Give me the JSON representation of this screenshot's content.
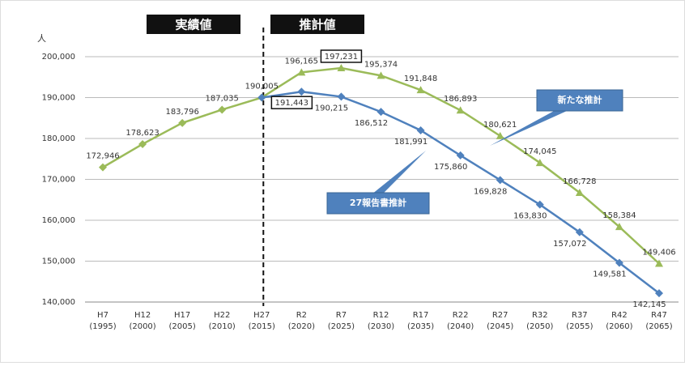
{
  "chart_data": {
    "type": "line",
    "headers": [
      "実績値",
      "推計値"
    ],
    "y_label": "人",
    "categories": [
      [
        "H7",
        "(1995)"
      ],
      [
        "H12",
        "(2000)"
      ],
      [
        "H17",
        "(2005)"
      ],
      [
        "H22",
        "(2010)"
      ],
      [
        "H27",
        "(2015)"
      ],
      [
        "R2",
        "(2020)"
      ],
      [
        "R7",
        "(2025)"
      ],
      [
        "R12",
        "(2030)"
      ],
      [
        "R17",
        "(2035)"
      ],
      [
        "R22",
        "(2040)"
      ],
      [
        "R27",
        "(2045)"
      ],
      [
        "R32",
        "(2050)"
      ],
      [
        "R37",
        "(2055)"
      ],
      [
        "R42",
        "(2060)"
      ],
      [
        "R47",
        "(2065)"
      ]
    ],
    "series": [
      {
        "name": "新たな推計",
        "color": "#9bbb59",
        "values": [
          172946,
          178623,
          183796,
          187035,
          190005,
          196165,
          197231,
          195374,
          191848,
          186893,
          180621,
          174045,
          166728,
          158384,
          149406
        ],
        "value_labels": [
          "172,946",
          "178,623",
          "183,796",
          "187,035",
          "190,005",
          "196,165",
          "197,231",
          "195,374",
          "191,848",
          "186,893",
          "180,621",
          "174,045",
          "166,728",
          "158,384",
          "149,406"
        ]
      },
      {
        "name": "27報告書推計",
        "color": "#4f81bd",
        "values": [
          null,
          null,
          null,
          null,
          190005,
          191443,
          190215,
          186512,
          181991,
          175860,
          169828,
          163830,
          157072,
          149581,
          142145
        ],
        "value_labels": [
          null,
          null,
          null,
          null,
          null,
          "191,443",
          "190,215",
          "186,512",
          "181,991",
          "175,860",
          "169,828",
          "163,830",
          "157,072",
          "149,581",
          "142,145"
        ]
      }
    ],
    "ylim": [
      140000,
      200000
    ],
    "yticks": [
      {
        "value": 140000,
        "label": "140,000"
      },
      {
        "value": 150000,
        "label": "150,000"
      },
      {
        "value": 160000,
        "label": "160,000"
      },
      {
        "value": 170000,
        "label": "170,000"
      },
      {
        "value": 180000,
        "label": "180,000"
      },
      {
        "value": 190000,
        "label": "190,000"
      },
      {
        "value": 200000,
        "label": "200,000"
      }
    ],
    "grid": true
  }
}
